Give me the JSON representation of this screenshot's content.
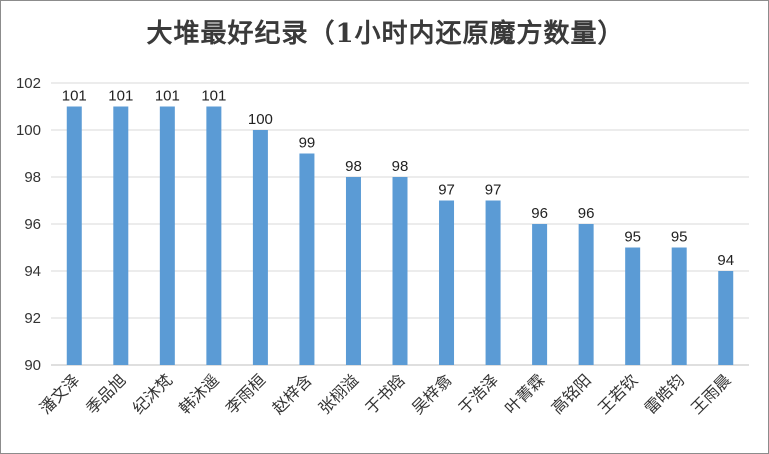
{
  "chart_data": {
    "type": "bar",
    "title": "大堆最好纪录（1小时内还原魔方数量）",
    "xlabel": "",
    "ylabel": "",
    "ylim": [
      90,
      102
    ],
    "yticks": [
      90,
      92,
      94,
      96,
      98,
      100,
      102
    ],
    "grid": true,
    "legend": "none",
    "bar_color": "#5b9bd5",
    "categories": [
      "潘文泽",
      "季品旭",
      "纪沐梵",
      "韩沐遥",
      "李雨桓",
      "赵梓含",
      "张栩溢",
      "于书晗",
      "吴梓翕",
      "于浩泽",
      "叶菁霖",
      "高铭阳",
      "王若钦",
      "雷皓钧",
      "王雨晨"
    ],
    "values": [
      101,
      101,
      101,
      101,
      100,
      99,
      98,
      98,
      97,
      97,
      96,
      96,
      95,
      95,
      94
    ]
  }
}
